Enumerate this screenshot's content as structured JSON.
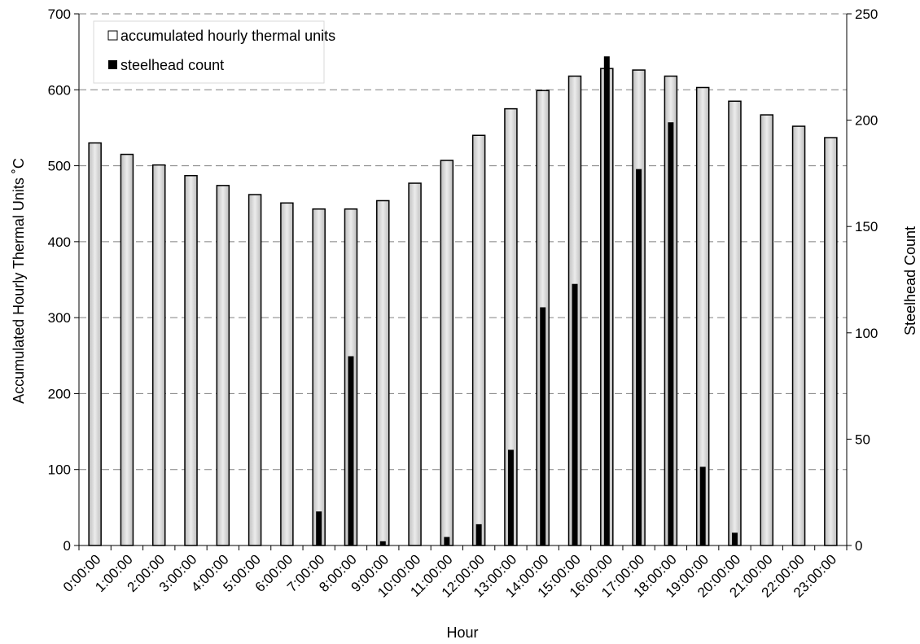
{
  "chart_data": {
    "type": "bar",
    "categories": [
      "0:00:00",
      "1:00:00",
      "2:00:00",
      "3:00:00",
      "4:00:00",
      "5:00:00",
      "6:00:00",
      "7:00:00",
      "8:00:00",
      "9:00:00",
      "10:00:00",
      "11:00:00",
      "12:00:00",
      "13:00:00",
      "14:00:00",
      "15:00:00",
      "16:00:00",
      "17:00:00",
      "18:00:00",
      "19:00:00",
      "20:00:00",
      "21:00:00",
      "22:00:00",
      "23:00:00"
    ],
    "series": [
      {
        "name": "accumulated hourly thermal units",
        "axis": "left",
        "values": [
          530,
          515,
          501,
          487,
          474,
          462,
          451,
          443,
          443,
          454,
          477,
          507,
          540,
          575,
          599,
          618,
          628,
          626,
          618,
          603,
          585,
          567,
          552,
          537
        ]
      },
      {
        "name": "steelhead count",
        "axis": "right",
        "values": [
          0,
          0,
          0,
          0,
          0,
          0,
          0,
          16,
          89,
          2,
          0,
          4,
          10,
          45,
          112,
          123,
          230,
          177,
          199,
          37,
          6,
          0,
          0,
          0
        ]
      }
    ],
    "xlabel": "Hour",
    "ylabel": "Accumulated Hourly Thermal Units ˚C",
    "y2label": "Steelhead Count",
    "ylim": [
      0,
      700
    ],
    "y2lim": [
      0,
      250
    ],
    "yticks": [
      "0",
      "100",
      "200",
      "300",
      "400",
      "500",
      "600",
      "700"
    ],
    "y2ticks": [
      "0",
      "50",
      "100",
      "150",
      "200",
      "250"
    ],
    "grid": true,
    "legend_position": "top-left",
    "colors": {
      "thermal_fill": "#d9d9d9",
      "thermal_outline": "#000000",
      "count_fill": "#000000",
      "gridline": "#808080"
    }
  }
}
